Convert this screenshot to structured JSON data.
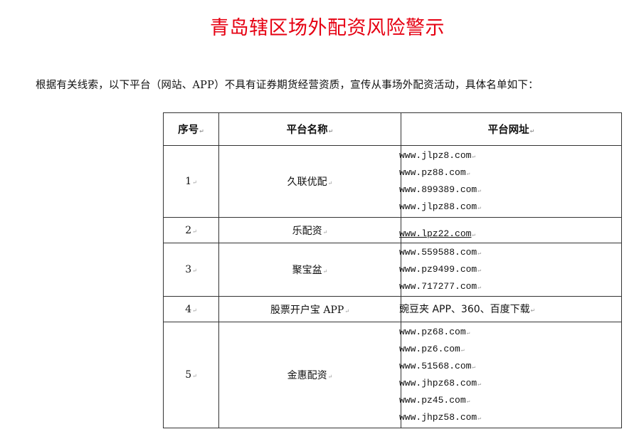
{
  "title": "青岛辖区场外配资风险警示",
  "intro": "根据有关线索，以下平台（网站、APP）不具有证券期货经营资质，宣传从事场外配资活动，具体名单如下：",
  "table": {
    "headers": [
      "序号",
      "平台名称",
      "平台网址"
    ],
    "rows": [
      {
        "no": "1",
        "name": "久联优配",
        "urls": [
          "www.jlpz8.com",
          "www.pz88.com",
          "www.899389.com",
          "www.jlpz88.com"
        ]
      },
      {
        "no": "2",
        "name": "乐配资",
        "urls": [
          "www.lpz22.com"
        ]
      },
      {
        "no": "3",
        "name": "聚宝盆",
        "urls": [
          "www.559588.com",
          "www.pz9499.com",
          "www.717277.com"
        ]
      },
      {
        "no": "4",
        "name": "股票开户宝 APP",
        "urls": [
          "豌豆夹 APP、360、百度下载"
        ]
      },
      {
        "no": "5",
        "name": "金惠配资",
        "urls": [
          "www.pz68.com",
          "www.pz6.com",
          "www.51568.com",
          "www.jhpz68.com",
          "www.pz45.com",
          "www.jhpz58.com"
        ]
      }
    ]
  },
  "colors": {
    "title": "#e60012"
  }
}
